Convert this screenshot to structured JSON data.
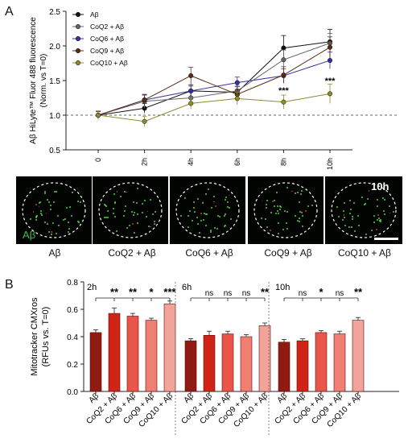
{
  "panel_labels": {
    "a": "A",
    "b": "B"
  },
  "microscopy": {
    "time_label": "10h",
    "stain_label": "Aβ",
    "captions": [
      "Aβ",
      "CoQ2 + Aβ",
      "CoQ6 + Aβ",
      "CoQ9 + Aβ",
      "CoQ10 + Aβ"
    ]
  },
  "colors": {
    "line_series": [
      "#111111",
      "#666666",
      "#3a2fa0",
      "#5a2a12",
      "#8c8a2e"
    ],
    "bar_fill": [
      "#8f1b12",
      "#cf2416",
      "#e8564a",
      "#f07e72",
      "#f2a39a"
    ]
  },
  "chart_data": [
    {
      "type": "line",
      "ylabel": "Aβ HiLyte™ Fluor 488 fluorescence (Norm. vs T=0)",
      "ylabel_line1": "Aβ HiLyte™ Fluor 488 fluorescence",
      "ylabel_line2": "(Norm. vs T=0)",
      "x": [
        "0",
        "2h",
        "4h",
        "6h",
        "8h",
        "10h"
      ],
      "ylim": [
        0.5,
        2.5
      ],
      "yticks": [
        "0.5",
        "1.0",
        "1.5",
        "2.0",
        "2.5"
      ],
      "reference_line": 1.0,
      "legend_position": "top-left",
      "series": [
        {
          "name": "Aβ",
          "values": [
            1.0,
            1.1,
            1.35,
            1.33,
            1.97,
            2.06
          ],
          "errors": [
            0.06,
            0.07,
            0.09,
            0.08,
            0.18,
            0.18
          ]
        },
        {
          "name": "CoQ2 + Aβ",
          "values": [
            1.0,
            1.2,
            1.25,
            1.35,
            1.8,
            2.04
          ],
          "errors": [
            0.06,
            0.1,
            0.09,
            0.08,
            0.14,
            0.14
          ]
        },
        {
          "name": "CoQ6 + Aβ",
          "values": [
            1.0,
            1.22,
            1.35,
            1.47,
            1.57,
            1.79
          ],
          "errors": [
            0.05,
            0.07,
            0.07,
            0.08,
            0.1,
            0.12
          ]
        },
        {
          "name": "CoQ9 + Aβ",
          "values": [
            1.0,
            1.22,
            1.57,
            1.3,
            1.58,
            1.98
          ],
          "errors": [
            0.06,
            0.08,
            0.12,
            0.07,
            0.12,
            0.15
          ]
        },
        {
          "name": "CoQ10 + Aβ",
          "values": [
            1.0,
            0.91,
            1.17,
            1.24,
            1.19,
            1.31
          ],
          "errors": [
            0.06,
            0.07,
            0.08,
            0.09,
            0.1,
            0.14
          ]
        }
      ],
      "annotations": [
        {
          "x": "8h",
          "text": "***"
        },
        {
          "x": "10h",
          "text": "***"
        }
      ]
    },
    {
      "type": "bar",
      "ylabel": "Mitotracker CMXros (RFUs vs. T=0)",
      "ylabel_line1": "Mitotracker CMXros",
      "ylabel_line2": "(RFUs vs. T=0)",
      "ylim": [
        0,
        0.8
      ],
      "yticks": [
        "0.0",
        "0.2",
        "0.4",
        "0.6",
        "0.8"
      ],
      "categories": [
        "Aβ",
        "CoQ2 + Aβ",
        "CoQ6 + Aβ",
        "CoQ9 + Aβ",
        "CoQ10 + Aβ"
      ],
      "groups": [
        {
          "name": "2h",
          "values": [
            0.43,
            0.57,
            0.55,
            0.52,
            0.64
          ],
          "errors": [
            0.02,
            0.04,
            0.02,
            0.015,
            0.02
          ],
          "significance": [
            "**",
            "**",
            "*",
            "***"
          ]
        },
        {
          "name": "6h",
          "values": [
            0.37,
            0.41,
            0.42,
            0.4,
            0.48
          ],
          "errors": [
            0.015,
            0.03,
            0.02,
            0.015,
            0.02
          ],
          "significance": [
            "ns",
            "ns",
            "ns",
            "**"
          ]
        },
        {
          "name": "10h",
          "values": [
            0.36,
            0.37,
            0.43,
            0.42,
            0.52
          ],
          "errors": [
            0.02,
            0.015,
            0.015,
            0.02,
            0.02
          ],
          "significance": [
            "ns",
            "*",
            "ns",
            "**"
          ]
        }
      ]
    }
  ]
}
